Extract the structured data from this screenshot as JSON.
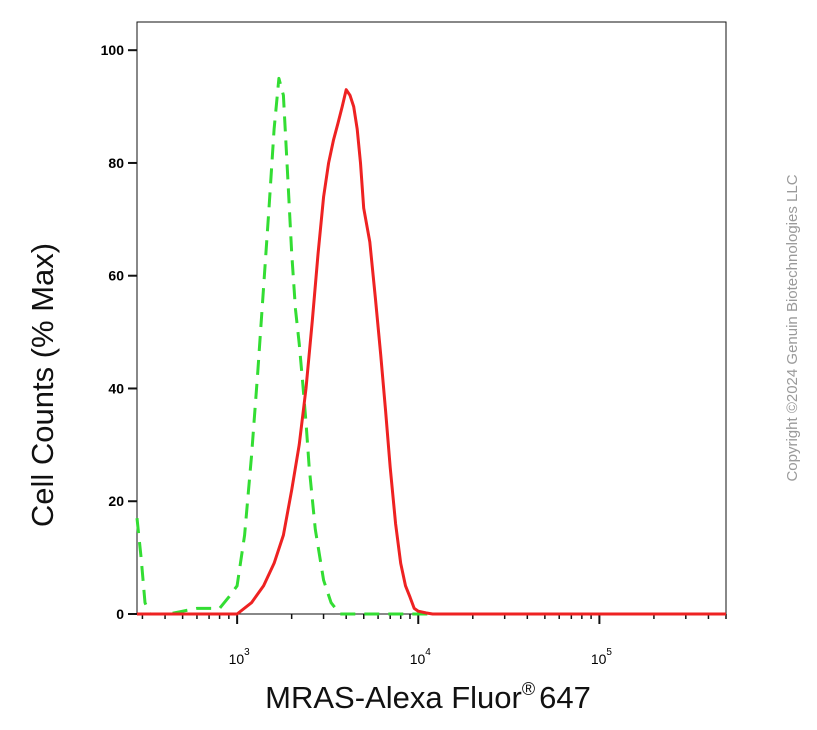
{
  "chart_data": {
    "type": "line",
    "x_scale": "log",
    "xlim": [
      280,
      500000
    ],
    "ylim": [
      0,
      105
    ],
    "ylabel": "Cell Counts (% Max)",
    "xlabel_main": "MRAS-Alexa Fluor",
    "xlabel_sup": "®",
    "xlabel_end": "647",
    "y_ticks": [
      {
        "value": 0,
        "label": "0"
      },
      {
        "value": 20,
        "label": "20"
      },
      {
        "value": 40,
        "label": "40"
      },
      {
        "value": 60,
        "label": "60"
      },
      {
        "value": 80,
        "label": "80"
      },
      {
        "value": 100,
        "label": "100"
      }
    ],
    "x_ticks": [
      {
        "value": 1000,
        "base": "10",
        "exp": "3"
      },
      {
        "value": 10000,
        "base": "10",
        "exp": "4"
      },
      {
        "value": 100000,
        "base": "10",
        "exp": "5"
      }
    ],
    "grid": false,
    "series": [
      {
        "style": "dashed",
        "color": "#33dd33",
        "x": [
          280,
          295,
          310,
          330,
          360,
          420,
          500,
          600,
          700,
          800,
          900,
          1000,
          1100,
          1200,
          1300,
          1400,
          1500,
          1600,
          1700,
          1800,
          1900,
          2000,
          2100,
          2200,
          2300,
          2400,
          2500,
          2700,
          3000,
          3300,
          3700,
          4200,
          5000,
          6000,
          10000,
          20000,
          100000,
          500000
        ],
        "y": [
          17,
          10,
          2,
          0,
          0,
          0,
          0.5,
          1,
          1,
          1,
          3,
          5,
          14,
          28,
          43,
          58,
          72,
          86,
          95,
          92,
          78,
          64,
          54,
          48,
          41,
          34,
          26,
          15,
          6,
          2,
          0,
          0,
          0,
          0,
          0,
          0,
          0,
          0
        ]
      },
      {
        "style": "solid",
        "color": "#ee2222",
        "x": [
          280,
          1000,
          1200,
          1400,
          1600,
          1800,
          2000,
          2200,
          2400,
          2600,
          2800,
          3000,
          3200,
          3400,
          3600,
          3800,
          4000,
          4200,
          4400,
          4600,
          4800,
          5000,
          5400,
          5800,
          6200,
          6600,
          7000,
          7500,
          8000,
          8500,
          9000,
          9500,
          10000,
          11000,
          12000,
          20000,
          100000,
          500000
        ],
        "y": [
          0,
          0,
          2,
          5,
          9,
          14,
          22,
          30,
          40,
          52,
          64,
          74,
          80,
          84,
          87,
          90,
          93,
          92,
          90,
          86,
          80,
          72,
          66,
          56,
          46,
          36,
          26,
          16,
          9,
          5,
          3,
          1,
          0.5,
          0.2,
          0,
          0,
          0,
          0
        ]
      }
    ]
  },
  "watermark": "Copyright ©2024 Genuin Biotechnologies LLC"
}
